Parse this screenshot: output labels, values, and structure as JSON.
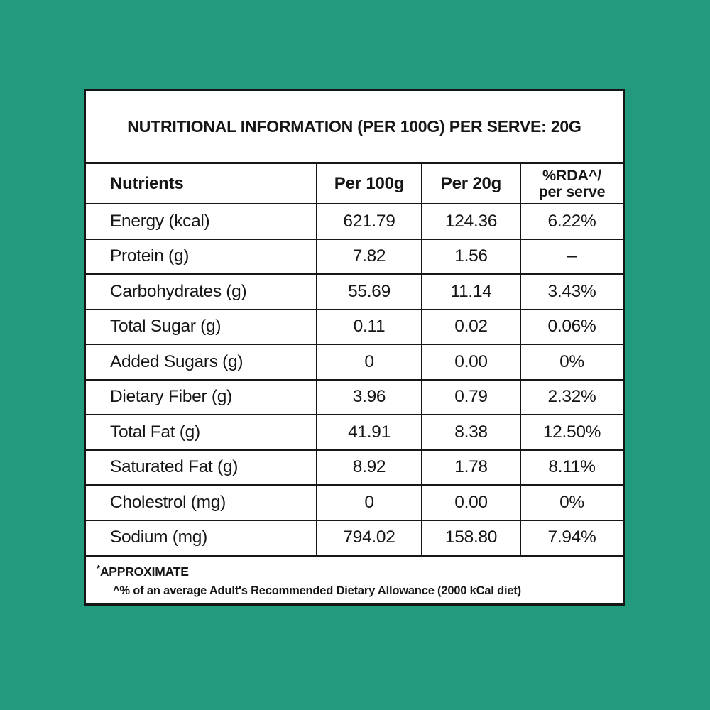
{
  "colors": {
    "background": "#229a7e",
    "card_background": "#ffffff",
    "border": "#161616",
    "text": "#161616"
  },
  "title": "NUTRITIONAL INFORMATION (PER 100G) PER SERVE: 20G",
  "table": {
    "columns": [
      {
        "label": "Nutrients"
      },
      {
        "label": "Per 100g"
      },
      {
        "label": "Per 20g"
      },
      {
        "label_line1": "%RDA^/",
        "label_line2": "per serve"
      }
    ],
    "rows": [
      {
        "nutrient": "Energy (kcal)",
        "per100g": "621.79",
        "per20g": "124.36",
        "rda": "6.22%"
      },
      {
        "nutrient": "Protein (g)",
        "per100g": "7.82",
        "per20g": "1.56",
        "rda": "–"
      },
      {
        "nutrient": "Carbohydrates (g)",
        "per100g": "55.69",
        "per20g": "11.14",
        "rda": "3.43%"
      },
      {
        "nutrient": "Total Sugar (g)",
        "per100g": "0.11",
        "per20g": "0.02",
        "rda": "0.06%"
      },
      {
        "nutrient": "Added Sugars (g)",
        "per100g": "0",
        "per20g": "0.00",
        "rda": "0%"
      },
      {
        "nutrient": "Dietary Fiber (g)",
        "per100g": "3.96",
        "per20g": "0.79",
        "rda": "2.32%"
      },
      {
        "nutrient": "Total Fat (g)",
        "per100g": "41.91",
        "per20g": "8.38",
        "rda": "12.50%"
      },
      {
        "nutrient": "Saturated Fat (g)",
        "per100g": "8.92",
        "per20g": "1.78",
        "rda": "8.11%"
      },
      {
        "nutrient": "Cholestrol (mg)",
        "per100g": "0",
        "per20g": "0.00",
        "rda": "0%"
      },
      {
        "nutrient": "Sodium (mg)",
        "per100g": "794.02",
        "per20g": "158.80",
        "rda": "7.94%"
      }
    ]
  },
  "footnotes": {
    "approximate_marker": "*",
    "approximate": "APPROXIMATE",
    "rda_note": "^% of an average Adult's Recommended Dietary Allowance (2000 kCal diet)"
  }
}
